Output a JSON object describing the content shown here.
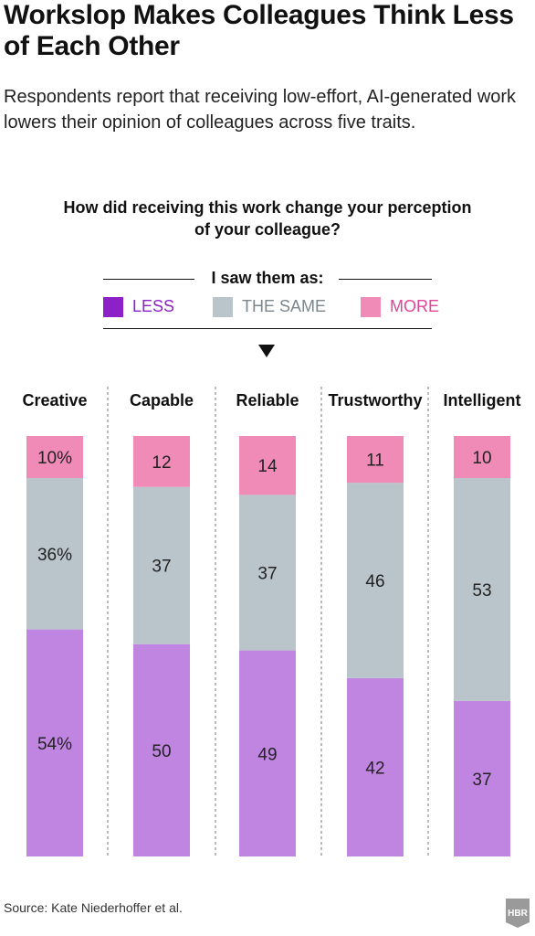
{
  "title": "Workslop Makes Colleagues Think Less of Each Other",
  "subtitle": "Respondents report that receiving low-effort, AI-generated work lowers their opinion of colleagues across five traits.",
  "question": "How did receiving this work change your perception of your colleague?",
  "legend": {
    "title": "I saw them as:",
    "items": [
      {
        "label": "LESS",
        "color": "#8B21C6",
        "text_color": "#8B21C6"
      },
      {
        "label": "THE SAME",
        "color": "#BAC4CB",
        "text_color": "#7C868D"
      },
      {
        "label": "MORE",
        "color": "#F08BB8",
        "text_color": "#E0449A"
      }
    ]
  },
  "source": "Source: Kate Niederhoffer et al.",
  "logo_text": "HBR",
  "chart_data": {
    "type": "bar",
    "stacked": true,
    "normalized_100": true,
    "categories": [
      "Creative",
      "Capable",
      "Reliable",
      "Trustworthy",
      "Intelligent"
    ],
    "series": [
      {
        "name": "LESS",
        "color": "#C085E1",
        "values": [
          54,
          50,
          49,
          42,
          37
        ],
        "labels": [
          "54%",
          "50",
          "49",
          "42",
          "37"
        ]
      },
      {
        "name": "THE SAME",
        "color": "#BAC4CB",
        "values": [
          36,
          37,
          37,
          46,
          53
        ],
        "labels": [
          "36%",
          "37",
          "37",
          "46",
          "53"
        ]
      },
      {
        "name": "MORE",
        "color": "#F08BB8",
        "values": [
          10,
          12,
          14,
          11,
          10
        ],
        "labels": [
          "10%",
          "12",
          "14",
          "11",
          "10"
        ]
      }
    ],
    "ylim": [
      0,
      100
    ],
    "grid": false,
    "legend_position": "top"
  }
}
